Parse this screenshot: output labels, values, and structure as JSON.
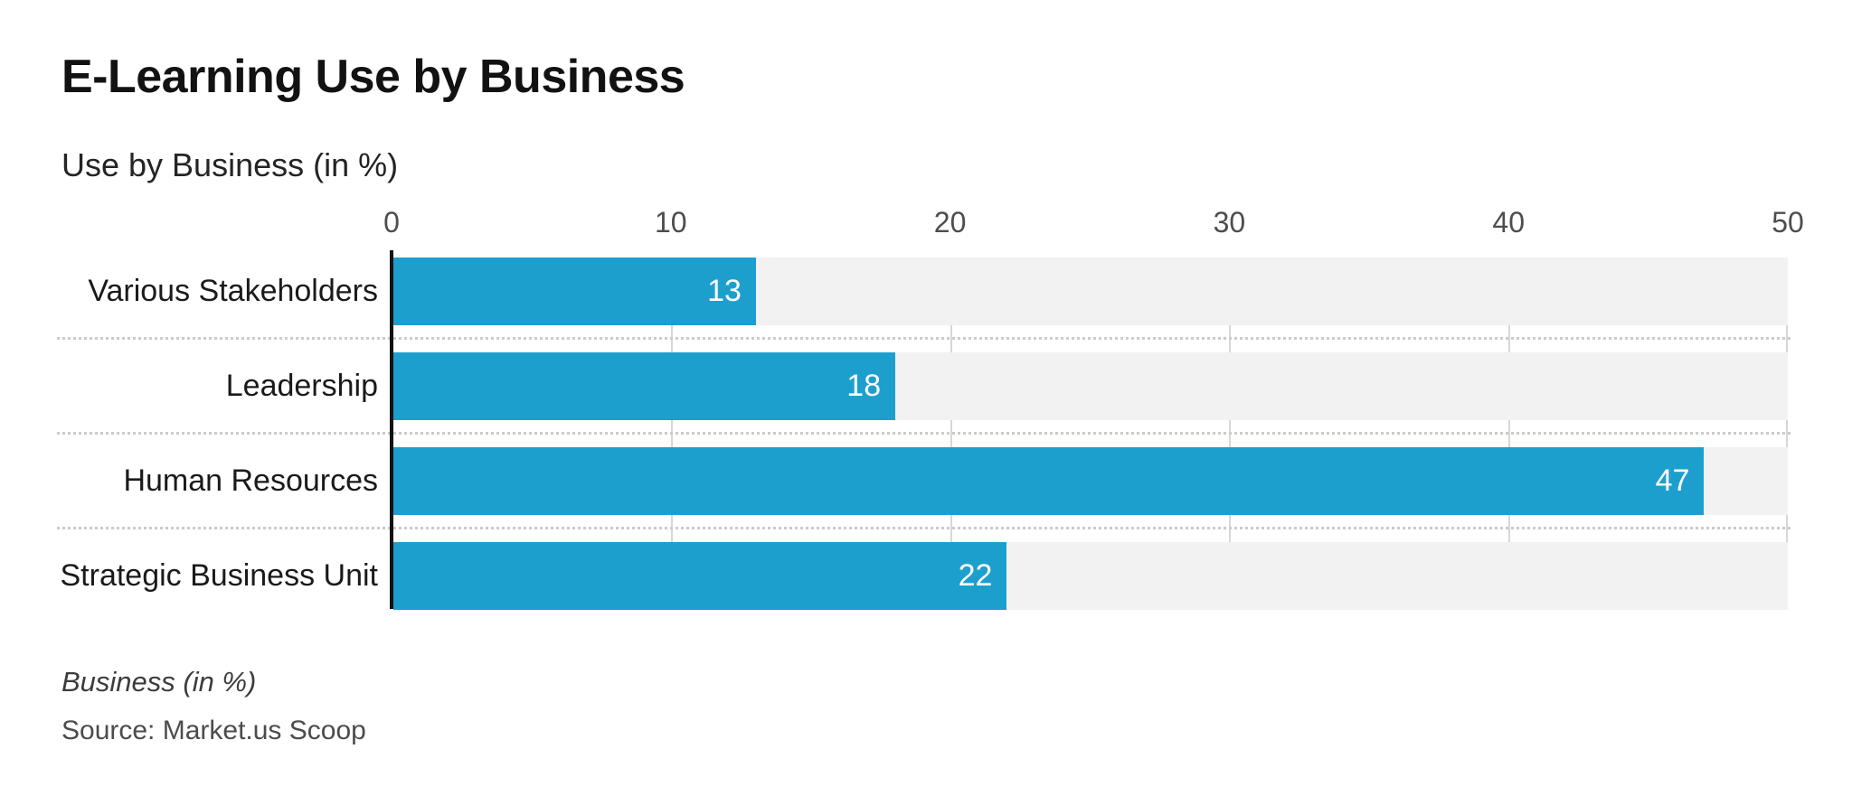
{
  "header": {
    "title": "E-Learning Use by Business",
    "subtitle": "Use by Business (in %)"
  },
  "footer": {
    "note": "Business (in %)",
    "source": "Source: Market.us Scoop"
  },
  "chart_data": {
    "type": "bar",
    "orientation": "horizontal",
    "title": "E-Learning Use by Business",
    "subtitle": "Use by Business (in %)",
    "categories": [
      "Various Stakeholders",
      "Leadership",
      "Human Resources",
      "Strategic Business Unit"
    ],
    "values": [
      13,
      18,
      47,
      22
    ],
    "xlabel": "",
    "ylabel": "",
    "xticks": [
      0,
      10,
      20,
      30,
      40,
      50
    ],
    "xlim": [
      0,
      50
    ],
    "grid": "vertical solid gridlines at each x tick; dotted horizontal separators between bar rows",
    "legend": "none",
    "bar_color": "#1d9fce",
    "track_color": "#f2f2f2",
    "value_label_color": "#ffffff",
    "footer_note": "Business (in %)",
    "footer_source": "Source: Market.us Scoop"
  }
}
